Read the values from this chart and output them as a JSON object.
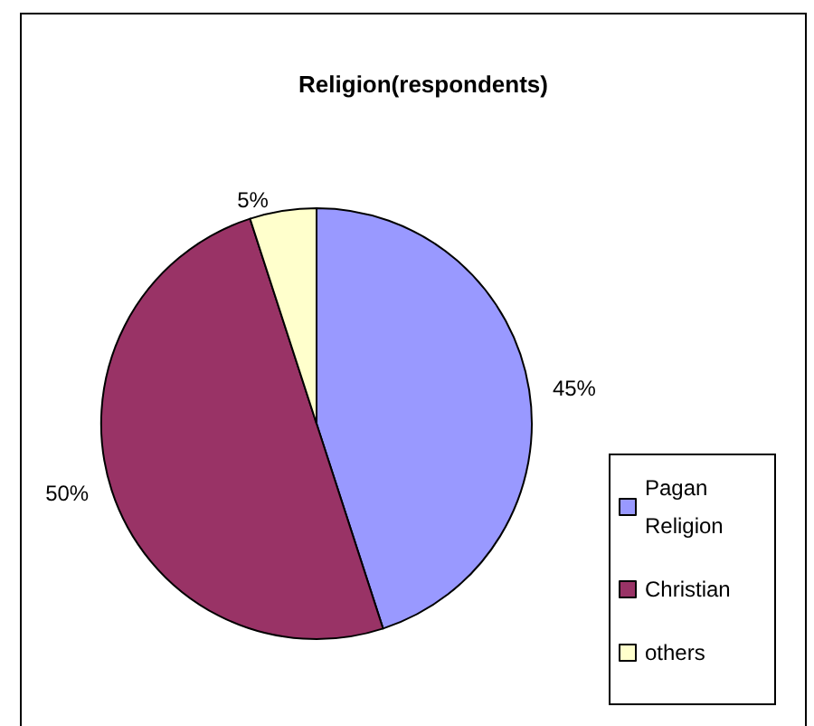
{
  "chart_data": {
    "type": "pie",
    "title": "Religion(respondents)",
    "categories": [
      "Pagan Religion",
      "Christian",
      "others"
    ],
    "values": [
      45,
      50,
      5
    ],
    "colors": [
      "#9999ff",
      "#993366",
      "#ffffcc"
    ],
    "value_labels": [
      "45%",
      "50%",
      "5%"
    ],
    "legend": "right"
  }
}
